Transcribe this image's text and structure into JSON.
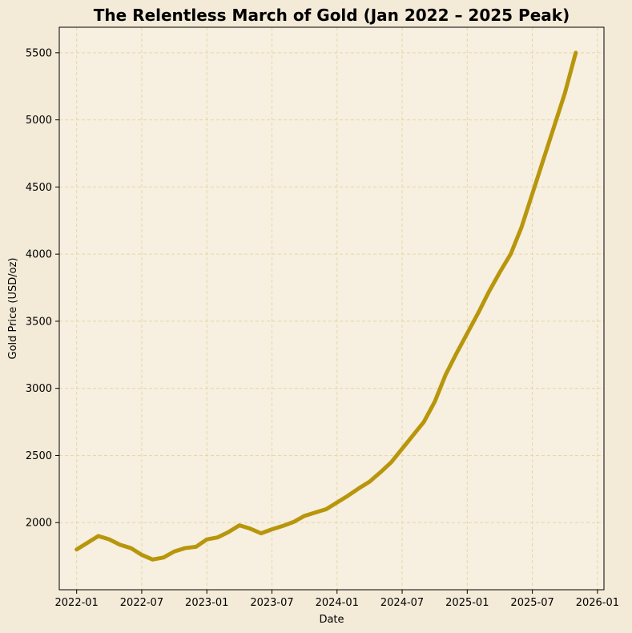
{
  "chart_data": {
    "type": "line",
    "title": "The Relentless March of Gold (Jan 2022 – 2025 Peak)",
    "xlabel": "Date",
    "ylabel": "Gold Price (USD/oz)",
    "x_start": "2022-01",
    "x_unit": "month",
    "xlim_months": [
      -1.6,
      48.6
    ],
    "ylim": [
      1500,
      5690
    ],
    "x_ticks": [
      {
        "month": 0,
        "label": "2022-01"
      },
      {
        "month": 6,
        "label": "2022-07"
      },
      {
        "month": 12,
        "label": "2023-01"
      },
      {
        "month": 18,
        "label": "2023-07"
      },
      {
        "month": 24,
        "label": "2024-01"
      },
      {
        "month": 30,
        "label": "2024-07"
      },
      {
        "month": 36,
        "label": "2025-01"
      },
      {
        "month": 42,
        "label": "2025-07"
      },
      {
        "month": 48,
        "label": "2026-01"
      }
    ],
    "y_ticks": [
      {
        "value": 2000,
        "label": "2000"
      },
      {
        "value": 2500,
        "label": "2500"
      },
      {
        "value": 3000,
        "label": "3000"
      },
      {
        "value": 3500,
        "label": "3500"
      },
      {
        "value": 4000,
        "label": "4000"
      },
      {
        "value": 4500,
        "label": "4500"
      },
      {
        "value": 5000,
        "label": "5000"
      },
      {
        "value": 5500,
        "label": "5500"
      }
    ],
    "grid": true,
    "series": [
      {
        "name": "Gold Price",
        "color": "#b8960c",
        "x_months": [
          0,
          1,
          2,
          3,
          4,
          5,
          6,
          7,
          8,
          9,
          10,
          11,
          12,
          13,
          14,
          15,
          16,
          17,
          18,
          19,
          20,
          21,
          22,
          23,
          24,
          25,
          26,
          27,
          28,
          29,
          30,
          31,
          32,
          33,
          34,
          35,
          36,
          37,
          38,
          39,
          40,
          41,
          42,
          43,
          44,
          45,
          46
        ],
        "values": [
          1800,
          1850,
          1900,
          1875,
          1835,
          1810,
          1760,
          1725,
          1740,
          1785,
          1810,
          1820,
          1875,
          1890,
          1930,
          1980,
          1955,
          1920,
          1950,
          1975,
          2005,
          2050,
          2075,
          2100,
          2150,
          2200,
          2255,
          2305,
          2375,
          2450,
          2550,
          2650,
          2750,
          2900,
          3100,
          3260,
          3410,
          3560,
          3720,
          3865,
          4000,
          4200,
          4450,
          4700,
          4950,
          5200,
          5500
        ]
      }
    ]
  },
  "colors": {
    "figure_bg": "#f3ead8",
    "axes_bg": "#f7efdf",
    "grid": "#e6d8a8",
    "line": "#b8960c"
  }
}
